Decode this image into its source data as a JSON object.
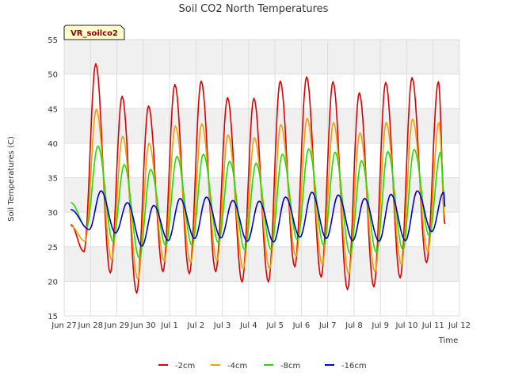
{
  "chart_data": {
    "type": "line",
    "title": "Soil CO2 North Temperatures",
    "xlabel": "Time",
    "ylabel": "Soil Temperatures (C)",
    "ylim": [
      15,
      55
    ],
    "xlim": [
      0,
      15
    ],
    "yticks": [
      15,
      20,
      25,
      30,
      35,
      40,
      45,
      50,
      55
    ],
    "xticks": [
      {
        "v": 0,
        "label": "Jun 27"
      },
      {
        "v": 1,
        "label": "Jun 28"
      },
      {
        "v": 2,
        "label": "Jun 29"
      },
      {
        "v": 3,
        "label": "Jun 30"
      },
      {
        "v": 4,
        "label": "Jul 1"
      },
      {
        "v": 5,
        "label": "Jul 2"
      },
      {
        "v": 6,
        "label": "Jul 3"
      },
      {
        "v": 7,
        "label": "Jul 4"
      },
      {
        "v": 8,
        "label": "Jul 5"
      },
      {
        "v": 9,
        "label": "Jul 6"
      },
      {
        "v": 10,
        "label": "Jul 7"
      },
      {
        "v": 11,
        "label": "Jul 8"
      },
      {
        "v": 12,
        "label": "Jul 9"
      },
      {
        "v": 13,
        "label": "Jul 10"
      },
      {
        "v": 14,
        "label": "Jul 11"
      },
      {
        "v": 15,
        "label": "Jul 12"
      }
    ],
    "grid": true,
    "legend_position": "bottom",
    "station_label": "VR_soilco2",
    "series": [
      {
        "name": "-2cm",
        "color": "#dd0000",
        "start": 28.2,
        "end": 28.3,
        "peaks": [
          {
            "x": 1.2,
            "y": 51.5
          },
          {
            "x": 2.2,
            "y": 46.8
          },
          {
            "x": 3.2,
            "y": 45.4
          },
          {
            "x": 4.2,
            "y": 48.5
          },
          {
            "x": 5.2,
            "y": 49.0
          },
          {
            "x": 6.2,
            "y": 46.6
          },
          {
            "x": 7.2,
            "y": 46.5
          },
          {
            "x": 8.2,
            "y": 49.0
          },
          {
            "x": 9.2,
            "y": 49.6
          },
          {
            "x": 10.2,
            "y": 48.9
          },
          {
            "x": 11.2,
            "y": 47.3
          },
          {
            "x": 12.2,
            "y": 48.8
          },
          {
            "x": 13.2,
            "y": 49.5
          },
          {
            "x": 14.2,
            "y": 48.9
          }
        ],
        "troughs": [
          {
            "x": 0.75,
            "y": 24.3
          },
          {
            "x": 1.75,
            "y": 21.2
          },
          {
            "x": 2.75,
            "y": 18.3
          },
          {
            "x": 3.75,
            "y": 21.4
          },
          {
            "x": 4.75,
            "y": 21.1
          },
          {
            "x": 5.75,
            "y": 21.4
          },
          {
            "x": 6.75,
            "y": 19.9
          },
          {
            "x": 7.75,
            "y": 19.9
          },
          {
            "x": 8.75,
            "y": 22.1
          },
          {
            "x": 9.75,
            "y": 20.6
          },
          {
            "x": 10.75,
            "y": 18.8
          },
          {
            "x": 11.75,
            "y": 19.2
          },
          {
            "x": 12.75,
            "y": 20.5
          },
          {
            "x": 13.75,
            "y": 22.7
          }
        ]
      },
      {
        "name": "-4cm",
        "color": "#f0a000",
        "start": 28.0,
        "end": 29.3,
        "peaks": [
          {
            "x": 1.22,
            "y": 44.9
          },
          {
            "x": 2.22,
            "y": 41.0
          },
          {
            "x": 3.22,
            "y": 40.0
          },
          {
            "x": 4.22,
            "y": 42.5
          },
          {
            "x": 5.22,
            "y": 42.8
          },
          {
            "x": 6.22,
            "y": 41.2
          },
          {
            "x": 7.22,
            "y": 40.8
          },
          {
            "x": 8.22,
            "y": 42.7
          },
          {
            "x": 9.22,
            "y": 43.6
          },
          {
            "x": 10.22,
            "y": 43.0
          },
          {
            "x": 11.22,
            "y": 41.5
          },
          {
            "x": 12.22,
            "y": 43.0
          },
          {
            "x": 13.22,
            "y": 43.5
          },
          {
            "x": 14.22,
            "y": 43.0
          }
        ],
        "troughs": [
          {
            "x": 0.8,
            "y": 25.8
          },
          {
            "x": 1.8,
            "y": 23.1
          },
          {
            "x": 2.8,
            "y": 20.3
          },
          {
            "x": 3.8,
            "y": 22.9
          },
          {
            "x": 4.8,
            "y": 22.7
          },
          {
            "x": 5.8,
            "y": 23.0
          },
          {
            "x": 6.8,
            "y": 21.8
          },
          {
            "x": 7.8,
            "y": 21.8
          },
          {
            "x": 8.8,
            "y": 23.6
          },
          {
            "x": 9.8,
            "y": 22.4
          },
          {
            "x": 10.8,
            "y": 21.0
          },
          {
            "x": 11.8,
            "y": 21.4
          },
          {
            "x": 12.8,
            "y": 22.4
          },
          {
            "x": 13.8,
            "y": 24.3
          }
        ]
      },
      {
        "name": "-8cm",
        "color": "#22dd00",
        "start": 31.4,
        "end": 31.0,
        "peaks": [
          {
            "x": 1.28,
            "y": 39.6
          },
          {
            "x": 2.28,
            "y": 36.9
          },
          {
            "x": 3.28,
            "y": 36.2
          },
          {
            "x": 4.28,
            "y": 38.1
          },
          {
            "x": 5.28,
            "y": 38.4
          },
          {
            "x": 6.28,
            "y": 37.4
          },
          {
            "x": 7.28,
            "y": 37.1
          },
          {
            "x": 8.28,
            "y": 38.4
          },
          {
            "x": 9.28,
            "y": 39.2
          },
          {
            "x": 10.28,
            "y": 38.7
          },
          {
            "x": 11.28,
            "y": 37.5
          },
          {
            "x": 12.28,
            "y": 38.8
          },
          {
            "x": 13.28,
            "y": 39.1
          },
          {
            "x": 14.28,
            "y": 38.7
          }
        ],
        "troughs": [
          {
            "x": 0.85,
            "y": 27.8
          },
          {
            "x": 1.85,
            "y": 25.8
          },
          {
            "x": 2.85,
            "y": 23.4
          },
          {
            "x": 3.85,
            "y": 25.2
          },
          {
            "x": 4.85,
            "y": 25.2
          },
          {
            "x": 5.85,
            "y": 25.6
          },
          {
            "x": 6.85,
            "y": 24.6
          },
          {
            "x": 7.85,
            "y": 24.6
          },
          {
            "x": 8.85,
            "y": 26.0
          },
          {
            "x": 9.85,
            "y": 25.2
          },
          {
            "x": 10.85,
            "y": 24.0
          },
          {
            "x": 11.85,
            "y": 24.2
          },
          {
            "x": 12.85,
            "y": 24.6
          },
          {
            "x": 13.85,
            "y": 26.6
          }
        ]
      },
      {
        "name": "-16cm",
        "color": "#0000cc",
        "start": 30.4,
        "end": 30.8,
        "peaks": [
          {
            "x": 1.4,
            "y": 33.1
          },
          {
            "x": 2.4,
            "y": 31.4
          },
          {
            "x": 3.4,
            "y": 31.0
          },
          {
            "x": 4.4,
            "y": 32.0
          },
          {
            "x": 5.4,
            "y": 32.2
          },
          {
            "x": 6.4,
            "y": 31.7
          },
          {
            "x": 7.4,
            "y": 31.6
          },
          {
            "x": 8.4,
            "y": 32.2
          },
          {
            "x": 9.4,
            "y": 32.9
          },
          {
            "x": 10.4,
            "y": 32.5
          },
          {
            "x": 11.4,
            "y": 32.0
          },
          {
            "x": 12.4,
            "y": 32.6
          },
          {
            "x": 13.4,
            "y": 33.1
          },
          {
            "x": 14.4,
            "y": 32.9
          }
        ],
        "troughs": [
          {
            "x": 0.95,
            "y": 27.5
          },
          {
            "x": 1.95,
            "y": 27.0
          },
          {
            "x": 2.95,
            "y": 25.1
          },
          {
            "x": 3.95,
            "y": 25.9
          },
          {
            "x": 4.95,
            "y": 26.2
          },
          {
            "x": 5.95,
            "y": 26.3
          },
          {
            "x": 6.95,
            "y": 25.8
          },
          {
            "x": 7.95,
            "y": 25.7
          },
          {
            "x": 8.95,
            "y": 26.4
          },
          {
            "x": 9.95,
            "y": 26.2
          },
          {
            "x": 10.95,
            "y": 25.9
          },
          {
            "x": 11.95,
            "y": 25.8
          },
          {
            "x": 12.95,
            "y": 25.9
          },
          {
            "x": 13.95,
            "y": 27.2
          }
        ]
      }
    ]
  },
  "colors": {
    "plot_background": "#ffffff",
    "band_background": "#f0f0f0",
    "gridline": "#dddddd",
    "badge_fill": "#ffffcc"
  }
}
